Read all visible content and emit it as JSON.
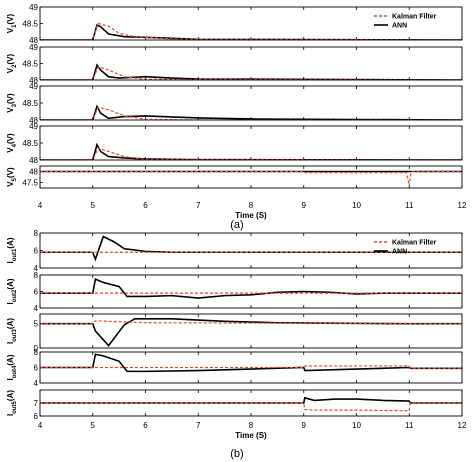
{
  "figure": {
    "caption_a": "(a)",
    "caption_b": "(b)",
    "legend": {
      "kalman": "Kalman Filter",
      "ann": "ANN",
      "kalman_color": "#e8442a",
      "ann_color": "#000000"
    }
  },
  "chart_data": [
    {
      "type": "line",
      "panel": "a",
      "xlabel": "Time (S)",
      "xlim": [
        4,
        12
      ],
      "xticks": [
        "4",
        "5",
        "6",
        "7",
        "8",
        "9",
        "10",
        "11",
        "12"
      ],
      "subplots": [
        {
          "ylabel": "V1(V)",
          "ylabel_main": "V",
          "ylabel_sub": "1",
          "ylabel_unit": "(V)",
          "ylim": [
            48,
            49
          ],
          "yticks": [
            "49",
            "48.5",
            "48"
          ],
          "series": [
            {
              "name": "ANN",
              "x": [
                4,
                5.0,
                5.08,
                5.15,
                5.3,
                5.6,
                6,
                7,
                12
              ],
              "y": [
                48,
                48,
                48.45,
                48.4,
                48.18,
                48.1,
                48.08,
                48.02,
                48
              ]
            },
            {
              "name": "Kalman Filter",
              "x": [
                4,
                5.0,
                5.1,
                5.3,
                5.5,
                5.8,
                6.5,
                12
              ],
              "y": [
                48,
                48,
                48.5,
                48.42,
                48.2,
                48.1,
                48.03,
                48
              ]
            }
          ]
        },
        {
          "ylabel": "V2(V)",
          "ylabel_main": "V",
          "ylabel_sub": "2",
          "ylabel_unit": "(V)",
          "ylim": [
            48,
            49
          ],
          "yticks": [
            "49",
            "48.5",
            "48"
          ],
          "series": [
            {
              "name": "ANN",
              "x": [
                4,
                5.0,
                5.08,
                5.15,
                5.3,
                5.5,
                6,
                6.5,
                7,
                12
              ],
              "y": [
                48,
                48,
                48.45,
                48.3,
                48.1,
                48.06,
                48.1,
                48.06,
                48.03,
                48
              ]
            },
            {
              "name": "Kalman Filter",
              "x": [
                4,
                5.0,
                5.1,
                5.3,
                5.6,
                6,
                12
              ],
              "y": [
                48,
                48,
                48.4,
                48.3,
                48.1,
                48.02,
                48
              ]
            }
          ]
        },
        {
          "ylabel": "V3(V)",
          "ylabel_main": "V",
          "ylabel_sub": "3",
          "ylabel_unit": "(V)",
          "ylim": [
            48,
            49
          ],
          "yticks": [
            "49",
            "48.5",
            "48"
          ],
          "series": [
            {
              "name": "ANN",
              "x": [
                4,
                5.0,
                5.08,
                5.15,
                5.3,
                5.6,
                6,
                7,
                8,
                12
              ],
              "y": [
                48,
                48,
                48.4,
                48.2,
                48.05,
                48.1,
                48.12,
                48.06,
                48.03,
                48
              ]
            },
            {
              "name": "Kalman Filter",
              "x": [
                4,
                5.0,
                5.1,
                5.3,
                5.6,
                6,
                7,
                12
              ],
              "y": [
                48,
                48,
                48.38,
                48.3,
                48.12,
                48.02,
                48,
                48
              ]
            }
          ]
        },
        {
          "ylabel": "V4(V)",
          "ylabel_main": "V",
          "ylabel_sub": "4",
          "ylabel_unit": "(V)",
          "ylim": [
            48,
            49
          ],
          "yticks": [
            "49",
            "48.5",
            "48"
          ],
          "series": [
            {
              "name": "ANN",
              "x": [
                4,
                5.0,
                5.08,
                5.15,
                5.3,
                5.6,
                6,
                7,
                12
              ],
              "y": [
                48,
                48,
                48.45,
                48.25,
                48.1,
                48.06,
                48.03,
                48.01,
                48
              ]
            },
            {
              "name": "Kalman Filter",
              "x": [
                4,
                5.0,
                5.1,
                5.3,
                5.6,
                6,
                12
              ],
              "y": [
                48,
                48,
                48.35,
                48.25,
                48.1,
                48.02,
                48
              ]
            }
          ]
        },
        {
          "ylabel": "V5(V)",
          "ylabel_main": "V",
          "ylabel_sub": "5",
          "ylabel_unit": "(V)",
          "ylim": [
            47.25,
            48.25
          ],
          "yticks": [
            "48",
            "47.5"
          ],
          "series": [
            {
              "name": "ANN",
              "x": [
                4,
                12
              ],
              "y": [
                48,
                48
              ]
            },
            {
              "name": "Kalman Filter",
              "x": [
                4,
                9,
                9.02,
                10.95,
                11.0,
                11.03,
                11.06,
                12
              ],
              "y": [
                48,
                48,
                47.95,
                47.95,
                47.35,
                47.95,
                48,
                48
              ]
            }
          ]
        }
      ]
    },
    {
      "type": "line",
      "panel": "b",
      "xlabel": "Time (S)",
      "xlim": [
        4,
        12
      ],
      "xticks": [
        "4",
        "5",
        "6",
        "7",
        "8",
        "9",
        "10",
        "11",
        "12"
      ],
      "subplots": [
        {
          "ylabel": "Iout1(A)",
          "ylabel_main": "I",
          "ylabel_sub": "out1",
          "ylabel_unit": "(A)",
          "ylim": [
            4,
            8
          ],
          "yticks": [
            "8",
            "6",
            "4"
          ],
          "series": [
            {
              "name": "ANN",
              "x": [
                4,
                5.0,
                5.05,
                5.2,
                5.4,
                5.6,
                6,
                6.5,
                7,
                12
              ],
              "y": [
                5.8,
                5.8,
                5.0,
                7.6,
                7.0,
                6.2,
                5.9,
                5.8,
                5.8,
                5.8
              ]
            },
            {
              "name": "Kalman Filter",
              "x": [
                4,
                12
              ],
              "y": [
                5.8,
                5.8
              ]
            }
          ]
        },
        {
          "ylabel": "Iout2(A)",
          "ylabel_main": "I",
          "ylabel_sub": "out2",
          "ylabel_unit": "(A)",
          "ylim": [
            4,
            8
          ],
          "yticks": [
            "8",
            "6",
            "4"
          ],
          "series": [
            {
              "name": "ANN",
              "x": [
                4,
                5.0,
                5.05,
                5.2,
                5.5,
                5.65,
                6,
                6.5,
                7,
                7.5,
                8,
                8.5,
                9,
                9.5,
                10,
                10.5,
                11,
                12
              ],
              "y": [
                5.8,
                5.8,
                7.5,
                7.1,
                6.6,
                5.4,
                5.4,
                5.5,
                5.2,
                5.5,
                5.6,
                5.9,
                6.0,
                5.9,
                5.7,
                5.8,
                5.8,
                5.8
              ]
            },
            {
              "name": "Kalman Filter",
              "x": [
                4,
                12
              ],
              "y": [
                5.8,
                5.8
              ]
            }
          ]
        },
        {
          "ylabel": "Iout3(A)",
          "ylabel_main": "I",
          "ylabel_sub": "out3",
          "ylabel_unit": "(A)",
          "ylim": [
            0,
            7
          ],
          "yticks": [
            "5",
            "0"
          ],
          "series": [
            {
              "name": "ANN",
              "x": [
                4,
                5.0,
                5.05,
                5.3,
                5.6,
                5.8,
                6.5,
                7.5,
                8.5,
                9.5,
                11,
                12
              ],
              "y": [
                5.0,
                5.0,
                3.5,
                0.5,
                4.8,
                6.0,
                6.0,
                5.5,
                5.2,
                5.1,
                5.0,
                5.0
              ]
            },
            {
              "name": "Kalman Filter",
              "x": [
                4,
                5.0,
                5.05,
                6,
                12
              ],
              "y": [
                5.0,
                5.0,
                5.6,
                5.2,
                5.0
              ]
            }
          ]
        },
        {
          "ylabel": "Iout4(A)",
          "ylabel_main": "I",
          "ylabel_sub": "out4",
          "ylabel_unit": "(A)",
          "ylim": [
            4,
            8
          ],
          "yticks": [
            "8",
            "6",
            "4"
          ],
          "series": [
            {
              "name": "ANN",
              "x": [
                4,
                5.0,
                5.05,
                5.2,
                5.5,
                5.65,
                6,
                7,
                8,
                9,
                9.02,
                10,
                11,
                11.02,
                12
              ],
              "y": [
                6.0,
                6.0,
                7.7,
                7.5,
                6.8,
                5.5,
                5.5,
                5.6,
                5.8,
                6.0,
                5.6,
                5.8,
                6.0,
                5.9,
                5.9
              ]
            },
            {
              "name": "Kalman Filter",
              "x": [
                4,
                9,
                9.02,
                11,
                11.02,
                12
              ],
              "y": [
                6.0,
                6.0,
                6.2,
                6.2,
                5.9,
                5.9
              ]
            }
          ]
        },
        {
          "ylabel": "Iout5(A)",
          "ylabel_main": "I",
          "ylabel_sub": "out5",
          "ylabel_unit": "(A)",
          "ylim": [
            6,
            8
          ],
          "yticks": [
            "7",
            "6"
          ],
          "series": [
            {
              "name": "ANN",
              "x": [
                4,
                9,
                9.02,
                9.2,
                9.6,
                10,
                10.5,
                11,
                11.02,
                12
              ],
              "y": [
                7.0,
                7.0,
                7.4,
                7.2,
                7.3,
                7.3,
                7.2,
                7.15,
                7.0,
                7.0
              ]
            },
            {
              "name": "Kalman Filter",
              "x": [
                4,
                9,
                9.02,
                9.2,
                10,
                11,
                11.02,
                12
              ],
              "y": [
                7.0,
                7.0,
                6.5,
                6.45,
                6.45,
                6.4,
                7.0,
                7.0
              ]
            }
          ]
        }
      ]
    }
  ]
}
